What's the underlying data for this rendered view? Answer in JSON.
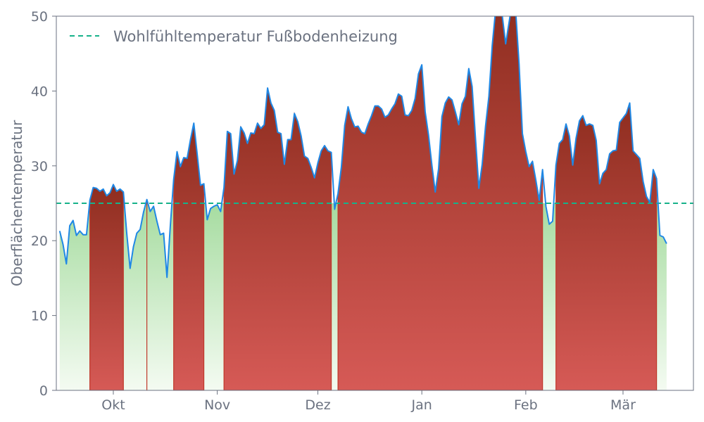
{
  "chart_data": {
    "type": "area",
    "title": "",
    "xlabel": "",
    "ylabel": "Oberflächentemperatur",
    "ylim": [
      0,
      50
    ],
    "yticks": [
      0,
      10,
      20,
      30,
      40,
      50
    ],
    "xlim": [
      "2023-09-14",
      "2024-03-22"
    ],
    "xticks": [
      {
        "date": "2023-10-01",
        "label": "Okt"
      },
      {
        "date": "2023-11-01",
        "label": "Nov"
      },
      {
        "date": "2023-12-01",
        "label": "Dez"
      },
      {
        "date": "2024-01-01",
        "label": "Jan"
      },
      {
        "date": "2024-02-01",
        "label": "Feb"
      },
      {
        "date": "2024-03-01",
        "label": "Mär"
      }
    ],
    "grid": false,
    "legend_position": "top-left",
    "threshold": {
      "name": "Wohlfühltemperatur Fußbodenheizung",
      "value": 25
    },
    "colors": {
      "line": "#1f88e5",
      "threshold": "#17b28a",
      "above_fill_top": "#8e2d1f",
      "above_fill_bottom": "#d65a56",
      "above_edge": "#c0392b",
      "below_fill_top": "#a6dca0",
      "below_fill_bottom": "#f4fbf2",
      "axis": "#6b7280"
    },
    "series": [
      {
        "values": [
          [
            "2023-09-15",
            21.3
          ],
          [
            "2023-09-16",
            19.5
          ],
          [
            "2023-09-17",
            16.9
          ],
          [
            "2023-09-18",
            22.0
          ],
          [
            "2023-09-19",
            22.7
          ],
          [
            "2023-09-20",
            20.7
          ],
          [
            "2023-09-21",
            21.3
          ],
          [
            "2023-09-22",
            20.8
          ],
          [
            "2023-09-23",
            20.8
          ],
          [
            "2023-09-24",
            25.4
          ],
          [
            "2023-09-25",
            27.1
          ],
          [
            "2023-09-26",
            27.0
          ],
          [
            "2023-09-27",
            26.6
          ],
          [
            "2023-09-28",
            26.9
          ],
          [
            "2023-09-29",
            26.0
          ],
          [
            "2023-09-30",
            26.4
          ],
          [
            "2023-10-01",
            27.5
          ],
          [
            "2023-10-02",
            26.6
          ],
          [
            "2023-10-03",
            26.9
          ],
          [
            "2023-10-04",
            26.5
          ],
          [
            "2023-10-05",
            21.0
          ],
          [
            "2023-10-06",
            16.3
          ],
          [
            "2023-10-07",
            19.2
          ],
          [
            "2023-10-08",
            21.0
          ],
          [
            "2023-10-09",
            21.5
          ],
          [
            "2023-10-10",
            23.8
          ],
          [
            "2023-10-11",
            25.5
          ],
          [
            "2023-10-12",
            23.9
          ],
          [
            "2023-10-13",
            24.6
          ],
          [
            "2023-10-14",
            22.6
          ],
          [
            "2023-10-15",
            20.8
          ],
          [
            "2023-10-16",
            21.0
          ],
          [
            "2023-10-17",
            15.1
          ],
          [
            "2023-10-18",
            22.0
          ],
          [
            "2023-10-19",
            28.2
          ],
          [
            "2023-10-20",
            31.9
          ],
          [
            "2023-10-21",
            29.9
          ],
          [
            "2023-10-22",
            31.1
          ],
          [
            "2023-10-23",
            31.0
          ],
          [
            "2023-10-24",
            33.5
          ],
          [
            "2023-10-25",
            35.7
          ],
          [
            "2023-10-26",
            31.6
          ],
          [
            "2023-10-27",
            27.4
          ],
          [
            "2023-10-28",
            27.6
          ],
          [
            "2023-10-29",
            22.8
          ],
          [
            "2023-10-30",
            24.3
          ],
          [
            "2023-10-31",
            24.6
          ],
          [
            "2023-11-01",
            24.8
          ],
          [
            "2023-11-02",
            23.9
          ],
          [
            "2023-11-03",
            27.1
          ],
          [
            "2023-11-04",
            34.6
          ],
          [
            "2023-11-05",
            34.3
          ],
          [
            "2023-11-06",
            28.9
          ],
          [
            "2023-11-07",
            30.7
          ],
          [
            "2023-11-08",
            35.2
          ],
          [
            "2023-11-09",
            34.4
          ],
          [
            "2023-11-10",
            33.0
          ],
          [
            "2023-11-11",
            34.4
          ],
          [
            "2023-11-12",
            34.3
          ],
          [
            "2023-11-13",
            35.7
          ],
          [
            "2023-11-14",
            35.0
          ],
          [
            "2023-11-15",
            35.5
          ],
          [
            "2023-11-16",
            40.4
          ],
          [
            "2023-11-17",
            38.4
          ],
          [
            "2023-11-18",
            37.4
          ],
          [
            "2023-11-19",
            34.5
          ],
          [
            "2023-11-20",
            34.3
          ],
          [
            "2023-11-21",
            30.2
          ],
          [
            "2023-11-22",
            33.5
          ],
          [
            "2023-11-23",
            33.5
          ],
          [
            "2023-11-24",
            37.0
          ],
          [
            "2023-11-25",
            35.9
          ],
          [
            "2023-11-26",
            34.0
          ],
          [
            "2023-11-27",
            31.3
          ],
          [
            "2023-11-28",
            31.0
          ],
          [
            "2023-11-29",
            29.8
          ],
          [
            "2023-11-30",
            28.4
          ],
          [
            "2023-12-01",
            30.4
          ],
          [
            "2023-12-02",
            32.0
          ],
          [
            "2023-12-03",
            32.7
          ],
          [
            "2023-12-04",
            32.0
          ],
          [
            "2023-12-05",
            31.8
          ],
          [
            "2023-12-06",
            24.2
          ],
          [
            "2023-12-07",
            26.3
          ],
          [
            "2023-12-08",
            29.8
          ],
          [
            "2023-12-09",
            35.4
          ],
          [
            "2023-12-10",
            37.9
          ],
          [
            "2023-12-11",
            36.3
          ],
          [
            "2023-12-12",
            35.2
          ],
          [
            "2023-12-13",
            35.3
          ],
          [
            "2023-12-14",
            34.5
          ],
          [
            "2023-12-15",
            34.3
          ],
          [
            "2023-12-16",
            35.6
          ],
          [
            "2023-12-17",
            36.7
          ],
          [
            "2023-12-18",
            38.0
          ],
          [
            "2023-12-19",
            38.0
          ],
          [
            "2023-12-20",
            37.6
          ],
          [
            "2023-12-21",
            36.5
          ],
          [
            "2023-12-22",
            36.8
          ],
          [
            "2023-12-23",
            37.6
          ],
          [
            "2023-12-24",
            38.3
          ],
          [
            "2023-12-25",
            39.6
          ],
          [
            "2023-12-26",
            39.3
          ],
          [
            "2023-12-27",
            36.8
          ],
          [
            "2023-12-28",
            36.7
          ],
          [
            "2023-12-29",
            37.4
          ],
          [
            "2023-12-30",
            39.0
          ],
          [
            "2023-12-31",
            42.3
          ],
          [
            "2024-01-01",
            43.5
          ],
          [
            "2024-01-02",
            37.2
          ],
          [
            "2024-01-03",
            34.1
          ],
          [
            "2024-01-04",
            30.1
          ],
          [
            "2024-01-05",
            26.5
          ],
          [
            "2024-01-06",
            29.6
          ],
          [
            "2024-01-07",
            36.6
          ],
          [
            "2024-01-08",
            38.4
          ],
          [
            "2024-01-09",
            39.2
          ],
          [
            "2024-01-10",
            38.8
          ],
          [
            "2024-01-11",
            37.2
          ],
          [
            "2024-01-12",
            35.5
          ],
          [
            "2024-01-13",
            38.3
          ],
          [
            "2024-01-14",
            39.3
          ],
          [
            "2024-01-15",
            43.0
          ],
          [
            "2024-01-16",
            40.6
          ],
          [
            "2024-01-17",
            33.7
          ],
          [
            "2024-01-18",
            27.0
          ],
          [
            "2024-01-19",
            30.2
          ],
          [
            "2024-01-20",
            35.3
          ],
          [
            "2024-01-21",
            39.3
          ],
          [
            "2024-01-22",
            46.1
          ],
          [
            "2024-01-23",
            50.8
          ],
          [
            "2024-01-24",
            51.2
          ],
          [
            "2024-01-25",
            50.0
          ],
          [
            "2024-01-26",
            46.3
          ],
          [
            "2024-01-27",
            49.1
          ],
          [
            "2024-01-28",
            52.0
          ],
          [
            "2024-01-29",
            50.6
          ],
          [
            "2024-01-30",
            43.6
          ],
          [
            "2024-01-31",
            34.3
          ],
          [
            "2024-02-01",
            31.9
          ],
          [
            "2024-02-02",
            29.9
          ],
          [
            "2024-02-03",
            30.6
          ],
          [
            "2024-02-04",
            28.1
          ],
          [
            "2024-02-05",
            25.4
          ],
          [
            "2024-02-06",
            29.5
          ],
          [
            "2024-02-07",
            24.6
          ],
          [
            "2024-02-08",
            22.2
          ],
          [
            "2024-02-09",
            22.6
          ],
          [
            "2024-02-10",
            30.1
          ],
          [
            "2024-02-11",
            33.0
          ],
          [
            "2024-02-12",
            33.5
          ],
          [
            "2024-02-13",
            35.6
          ],
          [
            "2024-02-14",
            34.0
          ],
          [
            "2024-02-15",
            30.1
          ],
          [
            "2024-02-16",
            33.7
          ],
          [
            "2024-02-17",
            36.0
          ],
          [
            "2024-02-18",
            36.7
          ],
          [
            "2024-02-19",
            35.4
          ],
          [
            "2024-02-20",
            35.6
          ],
          [
            "2024-02-21",
            35.4
          ],
          [
            "2024-02-22",
            33.4
          ],
          [
            "2024-02-23",
            27.6
          ],
          [
            "2024-02-24",
            29.0
          ],
          [
            "2024-02-25",
            29.5
          ],
          [
            "2024-02-26",
            31.6
          ],
          [
            "2024-02-27",
            32.0
          ],
          [
            "2024-02-28",
            32.1
          ],
          [
            "2024-02-29",
            35.8
          ],
          [
            "2024-03-01",
            36.4
          ],
          [
            "2024-03-02",
            37.0
          ],
          [
            "2024-03-03",
            38.4
          ],
          [
            "2024-03-04",
            32.0
          ],
          [
            "2024-03-05",
            31.5
          ],
          [
            "2024-03-06",
            31.0
          ],
          [
            "2024-03-07",
            27.9
          ],
          [
            "2024-03-08",
            25.9
          ],
          [
            "2024-03-09",
            25.1
          ],
          [
            "2024-03-10",
            29.5
          ],
          [
            "2024-03-11",
            28.3
          ],
          [
            "2024-03-12",
            20.7
          ],
          [
            "2024-03-13",
            20.5
          ],
          [
            "2024-03-14",
            19.6
          ]
        ]
      }
    ]
  }
}
